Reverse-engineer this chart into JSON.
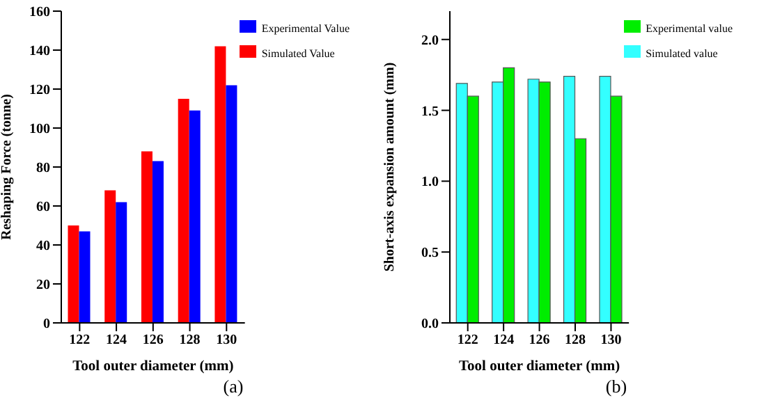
{
  "chart_data": [
    {
      "type": "bar",
      "categories": [
        "122",
        "124",
        "126",
        "128",
        "130"
      ],
      "xlabel": "Tool outer diameter (mm)",
      "ylabel": "Reshaping Force (tonne)",
      "ylim": [
        0,
        160
      ],
      "yticks": [
        0,
        20,
        40,
        60,
        80,
        100,
        120,
        140,
        160
      ],
      "legend": "top right",
      "annotations": [
        "(a)"
      ],
      "series": [
        {
          "name": "Simulated Value",
          "color": "#ff0000",
          "values": [
            50,
            68,
            88,
            115,
            142
          ]
        },
        {
          "name": "Experimental Value",
          "color": "#0000ff",
          "values": [
            47,
            62,
            83,
            109,
            122
          ]
        }
      ]
    },
    {
      "type": "bar",
      "categories": [
        "122",
        "124",
        "126",
        "128",
        "130"
      ],
      "xlabel": "Tool outer diameter (mm)",
      "ylabel": "Short-axis expansion amount (mm)",
      "ylim": [
        0,
        2.2
      ],
      "yticks": [
        {
          "value": 0,
          "label": "0.0"
        },
        0.5,
        {
          "value": 1,
          "label": "1.0"
        },
        1.5,
        {
          "value": 2,
          "label": "2.0"
        }
      ],
      "legend": "top right",
      "annotations": [
        "(b)"
      ],
      "series": [
        {
          "name": "Simulated value",
          "color": "#33ffff",
          "values": [
            1.69,
            1.7,
            1.72,
            1.74,
            1.74
          ]
        },
        {
          "name": "Experimental value",
          "color": "#00ee00",
          "values": [
            1.6,
            1.8,
            1.7,
            1.3,
            1.6
          ]
        }
      ]
    }
  ]
}
